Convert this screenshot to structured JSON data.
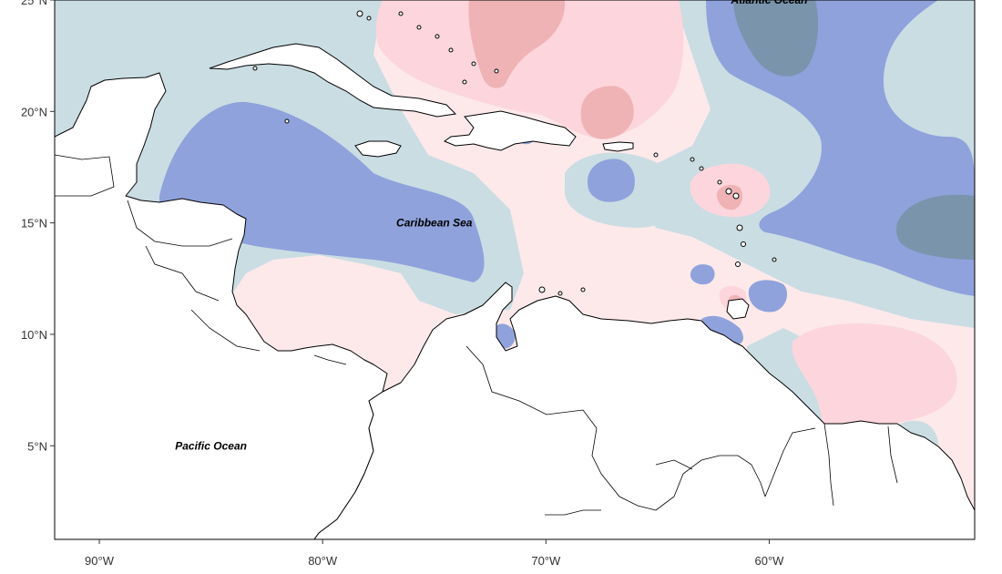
{
  "map": {
    "projection": "lon-lat",
    "extent": {
      "lon_min": -92.0,
      "lon_max": -50.8,
      "lat_min": 0.8,
      "lat_max": 25.0
    },
    "x_ticks": [
      {
        "lon": -90,
        "label": "90°W"
      },
      {
        "lon": -80,
        "label": "80°W"
      },
      {
        "lon": -70,
        "label": "70°W"
      },
      {
        "lon": -60,
        "label": "60°W"
      }
    ],
    "y_ticks": [
      {
        "lat": 25,
        "label": "25°N"
      },
      {
        "lat": 20,
        "label": "20°N"
      },
      {
        "lat": 15,
        "label": "15°N"
      },
      {
        "lat": 10,
        "label": "10°N"
      },
      {
        "lat": 5,
        "label": "5°N"
      }
    ],
    "labels": [
      {
        "text": "Atlantic Ocean",
        "lon": -60.0,
        "lat": 25.0
      },
      {
        "text": "Caribbean Sea",
        "lon": -75.0,
        "lat": 15.0
      },
      {
        "text": "Pacific Ocean",
        "lon": -85.0,
        "lat": 5.0
      }
    ],
    "colors": {
      "strong_negative": "#7a94ac",
      "negative": "#8fa2dc",
      "weak_negative": "#c9dde3",
      "neutral": "#ffffff",
      "weak_positive": "#fde9ea",
      "positive": "#fcd6dc",
      "strong_positive": "#efb3b5",
      "land": "#ffffff",
      "coastline": "#000000"
    }
  }
}
